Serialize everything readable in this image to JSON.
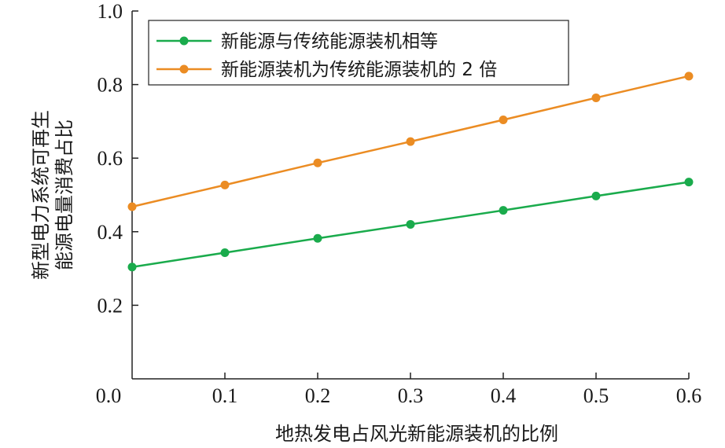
{
  "chart_data": {
    "type": "line",
    "title": "",
    "xlabel": "地热发电占风光新能源装机的比例",
    "ylabel_lines": [
      "新型电力系统可再生",
      "能源电量消费占比"
    ],
    "xlim": [
      0.0,
      0.6
    ],
    "ylim": [
      0.0,
      1.0
    ],
    "x_ticks": [
      "0.0",
      "0.1",
      "0.2",
      "0.3",
      "0.4",
      "0.5",
      "0.6"
    ],
    "y_ticks": [
      "0.2",
      "0.4",
      "0.6",
      "0.8",
      "1.0"
    ],
    "grid": false,
    "legend_position": "top-left",
    "x": [
      0.0,
      0.1,
      0.2,
      0.3,
      0.4,
      0.5,
      0.6
    ],
    "series": [
      {
        "name": "新能源与传统能源装机相等",
        "color": "#1aab4c",
        "values": [
          0.304,
          0.343,
          0.382,
          0.42,
          0.458,
          0.497,
          0.535
        ]
      },
      {
        "name": "新能源装机为传统能源装机的 2 倍",
        "color": "#eb8c23",
        "values": [
          0.468,
          0.527,
          0.587,
          0.645,
          0.704,
          0.764,
          0.823
        ]
      }
    ]
  }
}
